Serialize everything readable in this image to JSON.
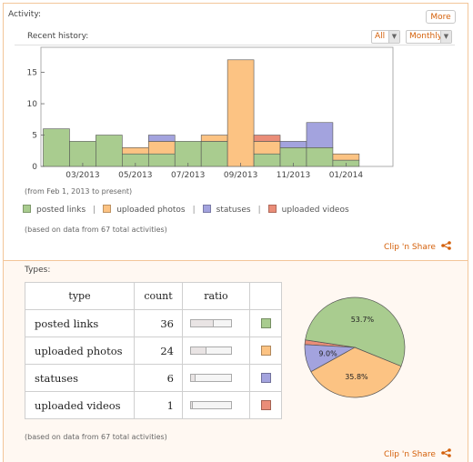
{
  "activity": {
    "title": "Activity:",
    "more_label": "More",
    "recent_history_label": "Recent history:",
    "filter_all": "All",
    "filter_period": "Monthly",
    "date_range_note": "(from Feb 1, 2013 to present)",
    "legend": [
      {
        "name": "posted links",
        "color": "#a9cc8f"
      },
      {
        "name": "uploaded photos",
        "color": "#fcc383"
      },
      {
        "name": "statuses",
        "color": "#a3a3de"
      },
      {
        "name": "uploaded videos",
        "color": "#ea8d78"
      }
    ],
    "based_on_note": "(based on data from 67 total activities)",
    "clip_label": "Clip 'n Share"
  },
  "chart_data": {
    "type": "bar",
    "stacked": true,
    "categories": [
      "02/2013",
      "03/2013",
      "04/2013",
      "05/2013",
      "06/2013",
      "07/2013",
      "08/2013",
      "09/2013",
      "10/2013",
      "11/2013",
      "12/2013",
      "01/2014",
      "02/2014"
    ],
    "x_tick_labels": [
      "03/2013",
      "05/2013",
      "07/2013",
      "09/2013",
      "11/2013",
      "01/2014"
    ],
    "series": [
      {
        "name": "posted links",
        "color": "#a9cc8f",
        "values": [
          6,
          4,
          5,
          2,
          2,
          4,
          4,
          0,
          2,
          3,
          3,
          1,
          0
        ]
      },
      {
        "name": "uploaded photos",
        "color": "#fcc383",
        "values": [
          0,
          0,
          0,
          1,
          2,
          0,
          1,
          17,
          2,
          0,
          0,
          1,
          0
        ]
      },
      {
        "name": "statuses",
        "color": "#a3a3de",
        "values": [
          0,
          0,
          0,
          0,
          1,
          0,
          0,
          0,
          0,
          1,
          4,
          0,
          0
        ]
      },
      {
        "name": "uploaded videos",
        "color": "#ea8d78",
        "values": [
          0,
          0,
          0,
          0,
          0,
          0,
          0,
          0,
          1,
          0,
          0,
          0,
          0
        ]
      }
    ],
    "ylim": [
      0,
      19
    ],
    "yticks": [
      0,
      5,
      10,
      15
    ],
    "xlabel": "",
    "ylabel": ""
  },
  "types": {
    "title": "Types:",
    "headers": {
      "type": "type",
      "count": "count",
      "ratio": "ratio"
    },
    "rows": [
      {
        "name": "posted links",
        "count": "36",
        "ratio": 0.537,
        "color": "#a9cc8f"
      },
      {
        "name": "uploaded photos",
        "count": "24",
        "ratio": 0.358,
        "color": "#fcc383"
      },
      {
        "name": "statuses",
        "count": "6",
        "ratio": 0.09,
        "color": "#a3a3de"
      },
      {
        "name": "uploaded videos",
        "count": "1",
        "ratio": 0.015,
        "color": "#ea8d78"
      }
    ],
    "pie": [
      {
        "name": "posted links",
        "value": 36,
        "label": "53.7%",
        "color": "#a9cc8f"
      },
      {
        "name": "uploaded photos",
        "value": 24,
        "label": "35.8%",
        "color": "#fcc383"
      },
      {
        "name": "statuses",
        "value": 6,
        "label": "9.0%",
        "color": "#a3a3de"
      },
      {
        "name": "uploaded videos",
        "value": 1,
        "label": "",
        "color": "#ea8d78"
      }
    ],
    "based_on_note": "(based on data from 67 total activities)",
    "clip_label": "Clip 'n Share"
  }
}
